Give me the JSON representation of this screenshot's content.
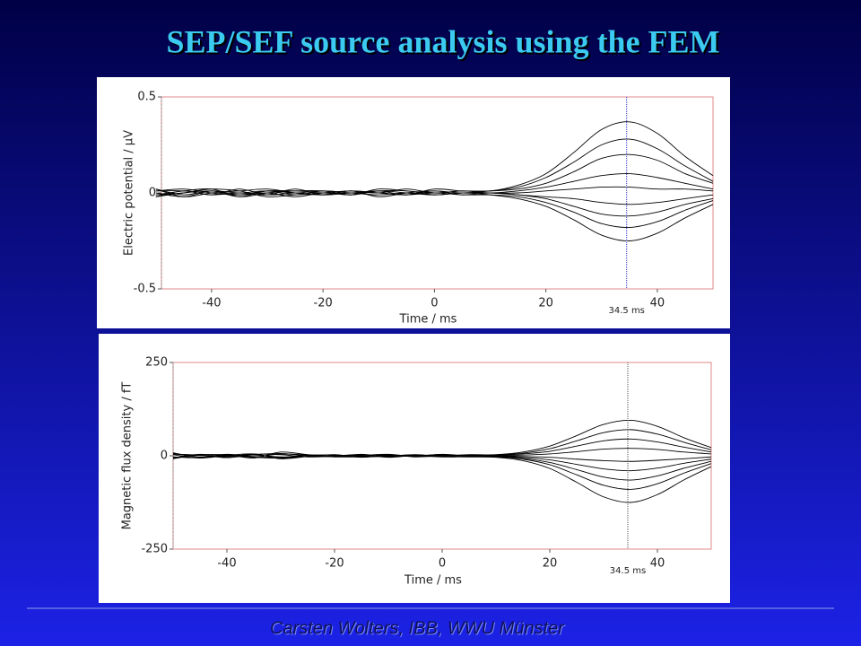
{
  "title": "SEP/SEF source analysis using the FEM",
  "footer": "Carsten Wolters, IBB, WWU Münster",
  "chart_data": [
    {
      "type": "line",
      "ylabel": "Electric potential / μV",
      "xlabel": "Time / ms",
      "color": "#000000",
      "x": [
        -50,
        -45,
        -40,
        -35,
        -30,
        -25,
        -20,
        -15,
        -10,
        -5,
        0,
        5,
        10,
        15,
        20,
        25,
        30,
        35,
        40,
        45,
        50
      ],
      "xlim": [
        -49,
        50
      ],
      "xticks": [
        -40,
        -20,
        0,
        20,
        40
      ],
      "ylim": [
        -0.5,
        0.5
      ],
      "yticks": [
        -0.5,
        0,
        0.5
      ],
      "marker": {
        "value": 34.5,
        "label": "34.5 ms",
        "color": "#3333cc"
      },
      "series": [
        {
          "values": [
            0.02,
            -0.01,
            0.01,
            -0.02,
            0.01,
            0,
            0.01,
            -0.01,
            0.02,
            0.01,
            0,
            0.01,
            0.01,
            0.04,
            0.1,
            0.21,
            0.33,
            0.37,
            0.31,
            0.19,
            0.09
          ]
        },
        {
          "values": [
            -0.02,
            0.01,
            -0.01,
            0.02,
            -0.01,
            0,
            -0.01,
            0.01,
            -0.02,
            0,
            0.01,
            0,
            0.01,
            0.03,
            0.08,
            0.16,
            0.25,
            0.28,
            0.23,
            0.14,
            0.06
          ]
        },
        {
          "values": [
            0.01,
            0.02,
            0,
            -0.01,
            0.01,
            0.01,
            0,
            0,
            0.01,
            -0.01,
            0.02,
            0.01,
            0.01,
            0.02,
            0.05,
            0.11,
            0.18,
            0.2,
            0.17,
            0.1,
            0.05
          ]
        },
        {
          "values": [
            -0.01,
            0,
            0.02,
            0.01,
            -0.02,
            -0.01,
            0,
            0.01,
            0,
            0.02,
            0,
            0.01,
            0,
            0.01,
            0.03,
            0.06,
            0.09,
            0.1,
            0.08,
            0.05,
            0.02
          ]
        },
        {
          "values": [
            0,
            -0.02,
            0.01,
            0,
            0.01,
            -0.01,
            0.01,
            0,
            -0.01,
            0,
            -0.01,
            0,
            0,
            0,
            0.01,
            0.02,
            0.03,
            0.03,
            0.02,
            0.02,
            0.01
          ]
        },
        {
          "values": [
            0.01,
            0.01,
            -0.01,
            0,
            -0.01,
            0.02,
            -0.01,
            0,
            0,
            -0.01,
            0.01,
            -0.01,
            0,
            -0.01,
            -0.02,
            -0.03,
            -0.05,
            -0.06,
            -0.05,
            -0.03,
            -0.01
          ]
        },
        {
          "values": [
            -0.02,
            0,
            0.01,
            -0.01,
            0,
            -0.02,
            0,
            -0.01,
            0.01,
            0,
            -0.01,
            0,
            0,
            -0.01,
            -0.03,
            -0.07,
            -0.11,
            -0.12,
            -0.1,
            -0.06,
            -0.03
          ]
        },
        {
          "values": [
            0.02,
            -0.02,
            0,
            0.01,
            0.02,
            0,
            -0.01,
            0.01,
            0,
            -0.01,
            0,
            -0.01,
            -0.01,
            -0.02,
            -0.05,
            -0.1,
            -0.16,
            -0.18,
            -0.15,
            -0.09,
            -0.04
          ]
        },
        {
          "values": [
            -0.01,
            0.01,
            0.02,
            -0.02,
            0,
            0.01,
            0.01,
            -0.01,
            0.01,
            0.01,
            -0.01,
            0,
            -0.01,
            -0.03,
            -0.07,
            -0.14,
            -0.22,
            -0.25,
            -0.21,
            -0.13,
            -0.06
          ]
        }
      ]
    },
    {
      "type": "line",
      "ylabel": "Magnetic flux density / fT",
      "xlabel": "Time / ms",
      "color": "#000000",
      "x": [
        -50,
        -45,
        -40,
        -35,
        -30,
        -25,
        -20,
        -15,
        -10,
        -5,
        0,
        5,
        10,
        15,
        20,
        25,
        30,
        35,
        40,
        45,
        50
      ],
      "xlim": [
        -50,
        50
      ],
      "xticks": [
        -40,
        -20,
        0,
        20,
        40
      ],
      "ylim": [
        -250,
        250
      ],
      "yticks": [
        -250,
        0,
        250
      ],
      "marker": {
        "value": 34.5,
        "label": "34.5 ms",
        "color": "#555555"
      },
      "series": [
        {
          "values": [
            8,
            -4,
            2,
            -6,
            10,
            3,
            -2,
            4,
            -3,
            2,
            0,
            3,
            3,
            10,
            26,
            54,
            84,
            95,
            79,
            48,
            22
          ]
        },
        {
          "values": [
            -6,
            4,
            -3,
            5,
            -8,
            -2,
            3,
            -4,
            2,
            -1,
            4,
            0,
            2,
            7,
            19,
            40,
            62,
            70,
            58,
            36,
            16
          ]
        },
        {
          "values": [
            4,
            2,
            -5,
            3,
            6,
            0,
            -2,
            1,
            4,
            -3,
            1,
            -2,
            1,
            5,
            12,
            26,
            40,
            45,
            37,
            23,
            10
          ]
        },
        {
          "values": [
            -3,
            -5,
            4,
            -2,
            -4,
            2,
            1,
            -3,
            0,
            2,
            -2,
            1,
            1,
            2,
            5,
            11,
            18,
            20,
            17,
            10,
            5
          ]
        },
        {
          "values": [
            5,
            1,
            -2,
            4,
            3,
            -3,
            -1,
            2,
            -2,
            0,
            3,
            -1,
            0,
            -2,
            -4,
            -9,
            -13,
            -15,
            -12,
            -8,
            -3
          ]
        },
        {
          "values": [
            -8,
            3,
            1,
            -4,
            -6,
            1,
            2,
            -1,
            1,
            -2,
            -1,
            2,
            -1,
            -4,
            -11,
            -23,
            -35,
            -40,
            -33,
            -20,
            -9
          ]
        },
        {
          "values": [
            6,
            -3,
            0,
            2,
            -3,
            -2,
            0,
            3,
            -4,
            1,
            -3,
            -2,
            -2,
            -7,
            -18,
            -37,
            -57,
            -65,
            -54,
            -33,
            -15
          ]
        },
        {
          "values": [
            -5,
            2,
            3,
            -3,
            5,
            2,
            -3,
            -2,
            3,
            -1,
            2,
            0,
            -3,
            -9,
            -24,
            -51,
            -79,
            -90,
            -75,
            -46,
            -21
          ]
        },
        {
          "values": [
            3,
            -6,
            1,
            5,
            -7,
            -1,
            -2,
            -3,
            -1,
            3,
            -2,
            -3,
            -4,
            -13,
            -34,
            -71,
            -110,
            -125,
            -104,
            -64,
            -29
          ]
        }
      ]
    }
  ]
}
